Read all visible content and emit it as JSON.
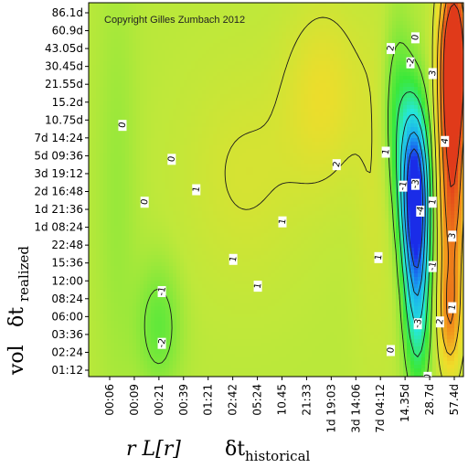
{
  "chart_data": {
    "type": "heatmap",
    "copyright": "Copyright Gilles Zumbach 2012",
    "x_tick_labels": [
      "00:06",
      "00:09",
      "00:21",
      "00:39",
      "01:21",
      "02:42",
      "05:24",
      "10.45",
      "21:33",
      "1d 19:03",
      "3d 14:06",
      "7d 04:12",
      "14.35d",
      "28.7d",
      "57.4d"
    ],
    "y_tick_labels": [
      "86.1d",
      "60.9d",
      "43.05d",
      "30.45d",
      "21.55d",
      "15.2d",
      "10.75d",
      "7d 14:24",
      "5d 09:36",
      "3d 19:12",
      "2d 16:48",
      "1d 21:36",
      "1d 08:24",
      "22:48",
      "15:36",
      "12:00",
      "08:24",
      "06:00",
      "03:36",
      "02:24",
      "01:12"
    ],
    "xlabel": {
      "left": "r L[r]",
      "right_symbol": "δt",
      "right_subscript": "historical"
    },
    "ylabel": {
      "prefix": "vol",
      "symbol": "δt",
      "subscript": "realized"
    },
    "contour_labels": [
      {
        "text": "0",
        "x": 0.5,
        "y": 6.3
      },
      {
        "text": "0",
        "x": 1.4,
        "y": 10.6
      },
      {
        "text": "0",
        "x": 2.5,
        "y": 8.2
      },
      {
        "text": "-1",
        "x": 2.1,
        "y": 15.6
      },
      {
        "text": "-2",
        "x": 2.1,
        "y": 18.5
      },
      {
        "text": "1",
        "x": 3.5,
        "y": 9.9
      },
      {
        "text": "1",
        "x": 5.0,
        "y": 13.8
      },
      {
        "text": "1",
        "x": 6.0,
        "y": 15.3
      },
      {
        "text": "1",
        "x": 7.0,
        "y": 11.7
      },
      {
        "text": "2",
        "x": 9.2,
        "y": 8.5
      },
      {
        "text": "1",
        "x": 10.9,
        "y": 13.7
      },
      {
        "text": "1",
        "x": 11.2,
        "y": 7.8
      },
      {
        "text": "2",
        "x": 11.4,
        "y": 2.0
      },
      {
        "text": "0",
        "x": 11.4,
        "y": 18.9
      },
      {
        "text": "-1",
        "x": 11.9,
        "y": 9.7
      },
      {
        "text": "-2",
        "x": 12.2,
        "y": 2.8
      },
      {
        "text": "-3",
        "x": 12.4,
        "y": 9.6
      },
      {
        "text": "0",
        "x": 12.4,
        "y": 1.4
      },
      {
        "text": "-4",
        "x": 12.6,
        "y": 11.1
      },
      {
        "text": "-1",
        "x": 13.1,
        "y": 14.2
      },
      {
        "text": "-3",
        "x": 12.5,
        "y": 17.4
      },
      {
        "text": "1",
        "x": 13.1,
        "y": 10.6
      },
      {
        "text": "3",
        "x": 13.1,
        "y": 3.4
      },
      {
        "text": "4",
        "x": 13.6,
        "y": 7.2
      },
      {
        "text": "3",
        "x": 13.9,
        "y": 12.5
      },
      {
        "text": "2",
        "x": 13.4,
        "y": 17.3
      },
      {
        "text": "1",
        "x": 13.9,
        "y": 16.5
      },
      {
        "text": "0",
        "x": 12.9,
        "y": 20.4
      }
    ],
    "color_scale": [
      "#1a2ce8",
      "#1aa6f0",
      "#26e8d8",
      "#3ae83a",
      "#bfe83a",
      "#f0dc2a",
      "#f08c1a",
      "#e03a1a"
    ],
    "grid": false
  }
}
